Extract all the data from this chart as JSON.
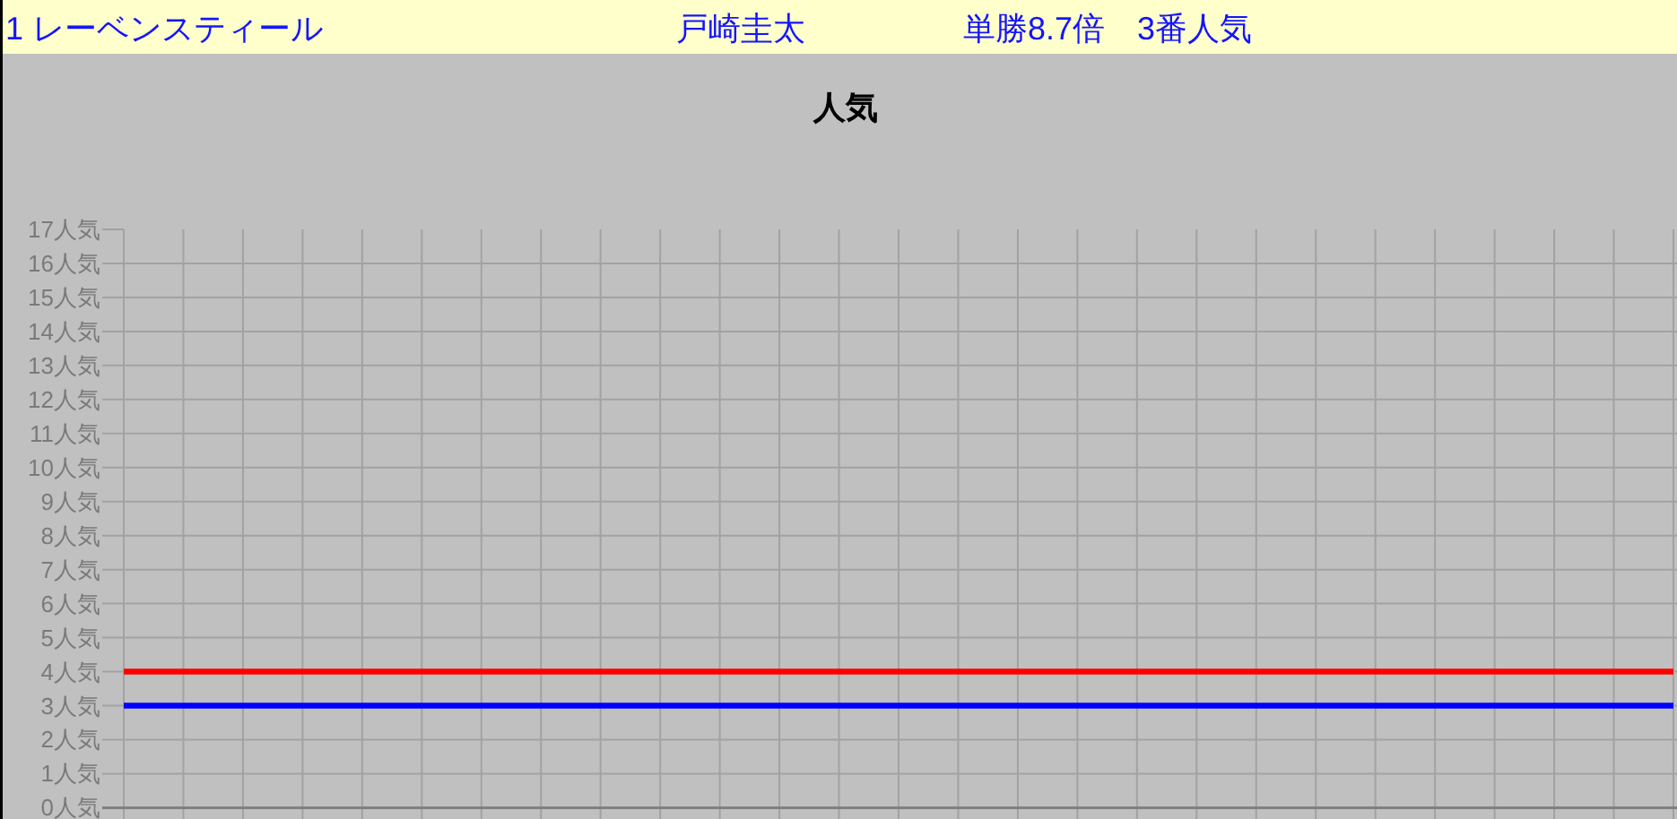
{
  "chart_data": {
    "type": "line",
    "title": "人気",
    "annotations": [
      "1 レーベンスティール",
      "戸崎圭太",
      "単勝8.7倍　3番人気"
    ],
    "categories": [
      null,
      null,
      null,
      null,
      null,
      null,
      null,
      null,
      null,
      null,
      null,
      null,
      null,
      null,
      null,
      null,
      null,
      null,
      null,
      null,
      null,
      null,
      null,
      null,
      null,
      null,
      null
    ],
    "series": [
      {
        "color": "#ff0000",
        "values": [
          4,
          4,
          4,
          4,
          4,
          4,
          4,
          4,
          4,
          4,
          4,
          4,
          4,
          4,
          4,
          4,
          4,
          4,
          4,
          4,
          4,
          4,
          4,
          4,
          4,
          4,
          4
        ]
      },
      {
        "color": "#0000ff",
        "values": [
          3,
          3,
          3,
          3,
          3,
          3,
          3,
          3,
          3,
          3,
          3,
          3,
          3,
          3,
          3,
          3,
          3,
          3,
          3,
          3,
          3,
          3,
          3,
          3,
          3,
          3,
          3
        ]
      }
    ],
    "ylim": [
      0,
      17
    ],
    "yticks": [
      {
        "value": 0,
        "label": "0人気"
      },
      {
        "value": 1,
        "label": "1人気"
      },
      {
        "value": 2,
        "label": "2人気"
      },
      {
        "value": 3,
        "label": "3人気"
      },
      {
        "value": 4,
        "label": "4人気"
      },
      {
        "value": 5,
        "label": "5人気"
      },
      {
        "value": 6,
        "label": "6人気"
      },
      {
        "value": 7,
        "label": "7人気"
      },
      {
        "value": 8,
        "label": "8人気"
      },
      {
        "value": 9,
        "label": "9人気"
      },
      {
        "value": 10,
        "label": "10人気"
      },
      {
        "value": 11,
        "label": "11人気"
      },
      {
        "value": 12,
        "label": "12人気"
      },
      {
        "value": 13,
        "label": "13人気"
      },
      {
        "value": 14,
        "label": "14人気"
      },
      {
        "value": 15,
        "label": "15人気"
      },
      {
        "value": 16,
        "label": "16人気"
      },
      {
        "value": 17,
        "label": "17人気"
      }
    ],
    "grid": true,
    "tick_labels": "y",
    "marker": "none",
    "line_style": "solid"
  }
}
